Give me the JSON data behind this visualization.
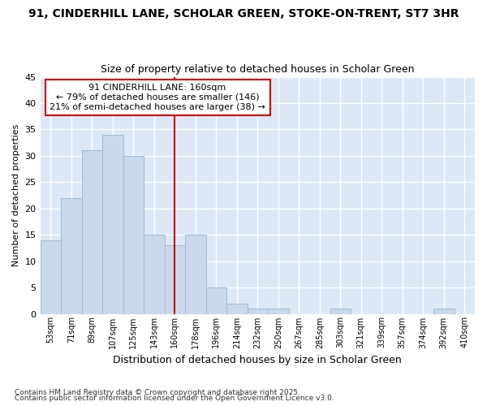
{
  "title1": "91, CINDERHILL LANE, SCHOLAR GREEN, STOKE-ON-TRENT, ST7 3HR",
  "title2": "Size of property relative to detached houses in Scholar Green",
  "xlabel": "Distribution of detached houses by size in Scholar Green",
  "ylabel": "Number of detached properties",
  "bins": [
    "53sqm",
    "71sqm",
    "89sqm",
    "107sqm",
    "125sqm",
    "143sqm",
    "160sqm",
    "178sqm",
    "196sqm",
    "214sqm",
    "232sqm",
    "250sqm",
    "267sqm",
    "285sqm",
    "303sqm",
    "321sqm",
    "339sqm",
    "357sqm",
    "374sqm",
    "392sqm",
    "410sqm"
  ],
  "values": [
    14,
    22,
    31,
    34,
    30,
    15,
    13,
    15,
    5,
    2,
    1,
    1,
    0,
    0,
    1,
    0,
    0,
    0,
    0,
    1,
    0
  ],
  "bar_color": "#c9d9ea",
  "bar_edge_color": "#a0bcd4",
  "highlight_bin_index": 6,
  "highlight_color": "#cc0000",
  "ylim": [
    0,
    45
  ],
  "yticks": [
    0,
    5,
    10,
    15,
    20,
    25,
    30,
    35,
    40,
    45
  ],
  "annotation_title": "91 CINDERHILL LANE: 160sqm",
  "annotation_line1": "← 79% of detached houses are smaller (146)",
  "annotation_line2": "21% of semi-detached houses are larger (38) →",
  "annotation_box_color": "#ffffff",
  "annotation_box_edge_color": "#cc0000",
  "fig_background_color": "#ffffff",
  "plot_background_color": "#dce8f5",
  "grid_color": "#ffffff",
  "footer1": "Contains HM Land Registry data © Crown copyright and database right 2025.",
  "footer2": "Contains public sector information licensed under the Open Government Licence v3.0."
}
